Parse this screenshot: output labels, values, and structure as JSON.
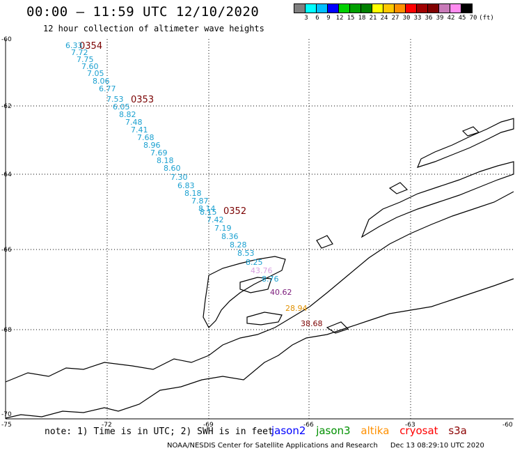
{
  "header": {
    "title": "00:00 – 11:59 UTC 12/10/2020",
    "subtitle": "12 hour collection of altimeter wave heights"
  },
  "legend": {
    "unit": "(ft)",
    "colors": [
      "#808080",
      "#00ffff",
      "#00bfff",
      "#0000ff",
      "#00d000",
      "#00a000",
      "#008000",
      "#ffff00",
      "#ffc800",
      "#ff9000",
      "#ff0000",
      "#a00000",
      "#800000",
      "#c87ab8",
      "#ff8cf0",
      "#000000"
    ],
    "labels": [
      "3",
      "6",
      "9",
      "12",
      "15",
      "18",
      "21",
      "24",
      "27",
      "30",
      "33",
      "36",
      "39",
      "42",
      "45",
      "70"
    ]
  },
  "axes": {
    "lat_labels": [
      "-60",
      "-62",
      "-64",
      "-66",
      "-68",
      "-70"
    ],
    "lon_labels": [
      "-75",
      "-72",
      "-69",
      "-66",
      "-63",
      "-60"
    ]
  },
  "passes": [
    "0354",
    "0353",
    "0352"
  ],
  "observations": [
    {
      "v": "6.33",
      "c": "#1aa0d0"
    },
    {
      "v": "7.72",
      "c": "#1aa0d0"
    },
    {
      "v": "7.75",
      "c": "#1aa0d0"
    },
    {
      "v": "7.60",
      "c": "#1aa0d0"
    },
    {
      "v": "7.05",
      "c": "#1aa0d0"
    },
    {
      "v": "8.06",
      "c": "#1aa0d0"
    },
    {
      "v": "6.77",
      "c": "#1aa0d0"
    },
    {
      "v": "7.53",
      "c": "#1aa0d0"
    },
    {
      "v": "6.05",
      "c": "#1aa0d0"
    },
    {
      "v": "8.82",
      "c": "#1aa0d0"
    },
    {
      "v": "7.48",
      "c": "#1aa0d0"
    },
    {
      "v": "7.41",
      "c": "#1aa0d0"
    },
    {
      "v": "7.68",
      "c": "#1aa0d0"
    },
    {
      "v": "8.96",
      "c": "#1aa0d0"
    },
    {
      "v": "7.69",
      "c": "#1aa0d0"
    },
    {
      "v": "8.18",
      "c": "#1aa0d0"
    },
    {
      "v": "8.60",
      "c": "#1aa0d0"
    },
    {
      "v": "7.30",
      "c": "#1aa0d0"
    },
    {
      "v": "6.83",
      "c": "#1aa0d0"
    },
    {
      "v": "8.18",
      "c": "#1aa0d0"
    },
    {
      "v": "7.87",
      "c": "#1aa0d0"
    },
    {
      "v": "8.14",
      "c": "#1aa0d0"
    },
    {
      "v": "8.15",
      "c": "#1aa0d0"
    },
    {
      "v": "7.42",
      "c": "#1aa0d0"
    },
    {
      "v": "7.19",
      "c": "#1aa0d0"
    },
    {
      "v": "8.36",
      "c": "#1aa0d0"
    },
    {
      "v": "8.28",
      "c": "#1aa0d0"
    },
    {
      "v": "8.53",
      "c": "#1aa0d0"
    },
    {
      "v": "8.25",
      "c": "#1aa0d0"
    },
    {
      "v": "43.76",
      "c": "#d8a0e0"
    },
    {
      "v": "8.76",
      "c": "#1aa0d0"
    },
    {
      "v": "40.62",
      "c": "#7a1a7a"
    },
    {
      "v": "28.94",
      "c": "#e09000"
    },
    {
      "v": "38.68",
      "c": "#7a0000"
    }
  ],
  "footer": {
    "note": "note: 1) Time is in UTC; 2) SWH is in feet",
    "satellites": [
      {
        "name": "jason2",
        "color": "#0000ff"
      },
      {
        "name": "jason3",
        "color": "#009000"
      },
      {
        "name": "altika",
        "color": "#ff9000"
      },
      {
        "name": "cryosat",
        "color": "#ff0000"
      },
      {
        "name": "s3a",
        "color": "#8b0000"
      }
    ],
    "credit": "NOAA/NESDIS Center for Satellite Applications and Research",
    "timestamp": "Dec 13 08:29:10 UTC 2020"
  }
}
